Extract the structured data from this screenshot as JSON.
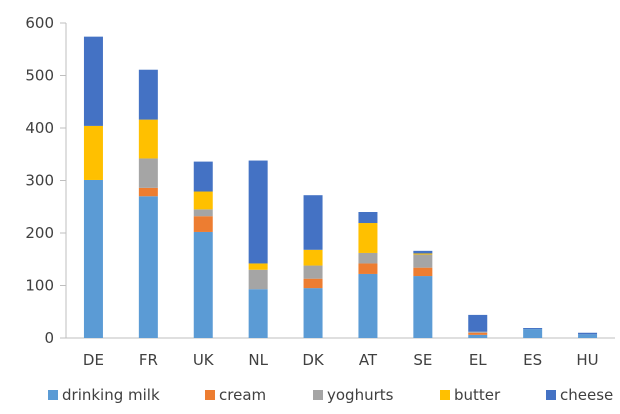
{
  "chart_data": {
    "type": "bar",
    "stacked": true,
    "title": "",
    "xlabel": "",
    "ylabel": "",
    "ylim": [
      0,
      600
    ],
    "yticks": [
      0,
      100,
      200,
      300,
      400,
      500,
      600
    ],
    "grid": false,
    "legend_position": "bottom",
    "categories": [
      "DE",
      "FR",
      "UK",
      "NL",
      "DK",
      "AT",
      "SE",
      "EL",
      "ES",
      "HU"
    ],
    "series": [
      {
        "name": "drinking milk",
        "color": "#5b9bd5",
        "values": [
          301,
          270,
          202,
          93,
          95,
          122,
          118,
          6,
          17,
          7
        ]
      },
      {
        "name": "cream",
        "color": "#ed7d31",
        "values": [
          0,
          16,
          30,
          0,
          18,
          20,
          16,
          4,
          0,
          0
        ]
      },
      {
        "name": "yoghurts",
        "color": "#a5a5a5",
        "values": [
          0,
          56,
          13,
          37,
          25,
          20,
          25,
          2,
          0,
          0
        ]
      },
      {
        "name": "butter",
        "color": "#ffc000",
        "values": [
          103,
          74,
          34,
          12,
          30,
          57,
          2,
          0,
          0,
          0
        ]
      },
      {
        "name": "cheese",
        "color": "#4472c4",
        "values": [
          170,
          95,
          57,
          196,
          104,
          21,
          5,
          32,
          2,
          3
        ]
      }
    ]
  }
}
